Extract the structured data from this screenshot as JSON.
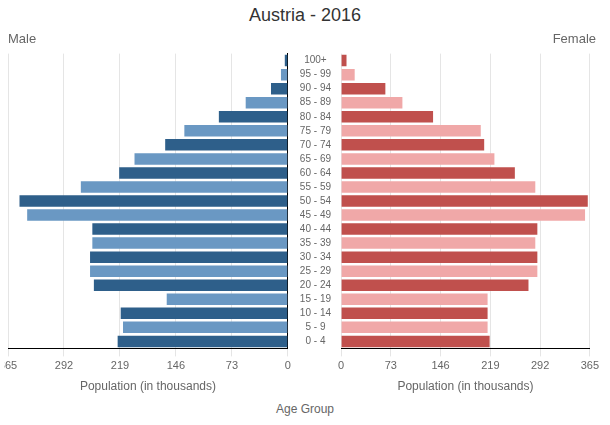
{
  "chart_data": {
    "type": "bar",
    "orientation": "horizontal",
    "title": "Austria - 2016",
    "xlabel": "Population (in thousands)",
    "ylabel": "Age Group",
    "categories": [
      "0 - 4",
      "5 - 9",
      "10 - 14",
      "15 - 19",
      "20 - 24",
      "25 - 29",
      "30 - 34",
      "35 - 39",
      "40 - 44",
      "45 - 49",
      "50 - 54",
      "55 - 59",
      "60 - 64",
      "65 - 69",
      "70 - 74",
      "75 - 79",
      "80 - 84",
      "85 - 89",
      "90 - 94",
      "95 - 99",
      "100+"
    ],
    "series": [
      {
        "name": "Male",
        "colors": [
          "#2e5f8a",
          "#6a98c3",
          "#2e5f8a",
          "#6a98c3",
          "#2e5f8a",
          "#6a98c3",
          "#2e5f8a",
          "#6a98c3",
          "#2e5f8a",
          "#6a98c3",
          "#2e5f8a",
          "#6a98c3",
          "#2e5f8a",
          "#6a98c3",
          "#2e5f8a",
          "#6a98c3",
          "#2e5f8a",
          "#6a98c3",
          "#2e5f8a",
          "#6a98c3",
          "#2e5f8a"
        ],
        "values": [
          222,
          215,
          218,
          158,
          253,
          258,
          258,
          255,
          255,
          340,
          350,
          270,
          220,
          200,
          160,
          135,
          90,
          55,
          22,
          9,
          4
        ]
      },
      {
        "name": "Female",
        "colors": [
          "#c0504d",
          "#f0a8a8",
          "#c0504d",
          "#f0a8a8",
          "#c0504d",
          "#f0a8a8",
          "#c0504d",
          "#f0a8a8",
          "#c0504d",
          "#f0a8a8",
          "#c0504d",
          "#f0a8a8",
          "#c0504d",
          "#f0a8a8",
          "#c0504d",
          "#f0a8a8",
          "#c0504d",
          "#f0a8a8",
          "#c0504d",
          "#f0a8a8",
          "#c0504d"
        ],
        "values": [
          218,
          215,
          215,
          215,
          275,
          288,
          288,
          285,
          288,
          358,
          362,
          285,
          255,
          225,
          210,
          205,
          135,
          90,
          65,
          20,
          8
        ]
      }
    ],
    "xlim": [
      0,
      365
    ],
    "xticks": [
      0,
      73,
      146,
      219,
      292,
      365
    ],
    "grid": true
  }
}
